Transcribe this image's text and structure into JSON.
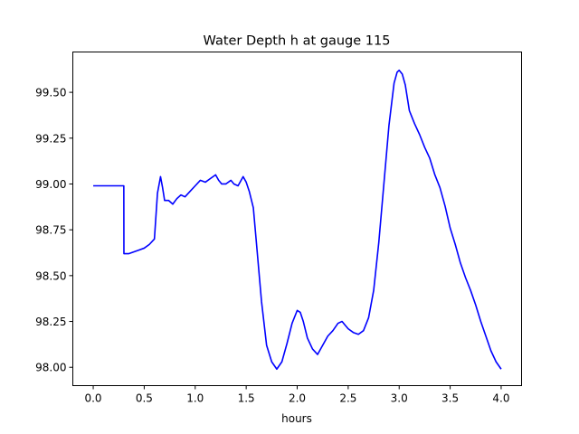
{
  "chart_data": {
    "type": "line",
    "title": "Water Depth h at gauge 115",
    "xlabel": "hours",
    "ylabel": "",
    "xlim": [
      -0.2,
      4.2
    ],
    "ylim": [
      97.9,
      99.72
    ],
    "xticks": [
      0.0,
      0.5,
      1.0,
      1.5,
      2.0,
      2.5,
      3.0,
      3.5,
      4.0
    ],
    "xtick_labels": [
      "0.0",
      "0.5",
      "1.0",
      "1.5",
      "2.0",
      "2.5",
      "3.0",
      "3.5",
      "4.0"
    ],
    "yticks": [
      98.0,
      98.25,
      98.5,
      98.75,
      99.0,
      99.25,
      99.5
    ],
    "ytick_labels": [
      "98.00",
      "98.25",
      "98.50",
      "98.75",
      "99.00",
      "99.25",
      "99.50"
    ],
    "grid": false,
    "legend": "none",
    "series": [
      {
        "color": "#0000ff",
        "x": [
          0.0,
          0.1,
          0.2,
          0.3,
          0.301,
          0.35,
          0.4,
          0.45,
          0.5,
          0.55,
          0.6,
          0.63,
          0.66,
          0.68,
          0.7,
          0.74,
          0.78,
          0.82,
          0.86,
          0.9,
          0.95,
          1.0,
          1.05,
          1.1,
          1.15,
          1.2,
          1.23,
          1.26,
          1.3,
          1.35,
          1.38,
          1.42,
          1.47,
          1.5,
          1.53,
          1.57,
          1.6,
          1.65,
          1.7,
          1.75,
          1.8,
          1.85,
          1.9,
          1.95,
          2.0,
          2.03,
          2.06,
          2.1,
          2.15,
          2.2,
          2.25,
          2.3,
          2.35,
          2.4,
          2.44,
          2.47,
          2.5,
          2.55,
          2.6,
          2.65,
          2.7,
          2.75,
          2.8,
          2.85,
          2.9,
          2.95,
          2.98,
          3.0,
          3.03,
          3.06,
          3.1,
          3.15,
          3.2,
          3.25,
          3.3,
          3.35,
          3.4,
          3.45,
          3.5,
          3.55,
          3.6,
          3.65,
          3.7,
          3.75,
          3.8,
          3.85,
          3.9,
          3.95,
          4.0
        ],
        "y": [
          98.99,
          98.99,
          98.99,
          98.99,
          98.62,
          98.62,
          98.63,
          98.64,
          98.65,
          98.67,
          98.7,
          98.95,
          99.04,
          98.98,
          98.91,
          98.91,
          98.89,
          98.92,
          98.94,
          98.93,
          98.96,
          98.99,
          99.02,
          99.01,
          99.03,
          99.05,
          99.02,
          99.0,
          99.0,
          99.02,
          99.0,
          98.99,
          99.04,
          99.01,
          98.96,
          98.87,
          98.68,
          98.36,
          98.12,
          98.03,
          97.99,
          98.03,
          98.13,
          98.24,
          98.31,
          98.3,
          98.25,
          98.16,
          98.1,
          98.07,
          98.12,
          98.17,
          98.2,
          98.24,
          98.25,
          98.23,
          98.21,
          98.19,
          98.18,
          98.2,
          98.27,
          98.42,
          98.68,
          99.0,
          99.32,
          99.55,
          99.61,
          99.62,
          99.6,
          99.54,
          99.4,
          99.33,
          99.27,
          99.2,
          99.14,
          99.05,
          98.98,
          98.88,
          98.76,
          98.67,
          98.57,
          98.49,
          98.42,
          98.34,
          98.25,
          98.17,
          98.09,
          98.03,
          97.99
        ]
      }
    ]
  }
}
